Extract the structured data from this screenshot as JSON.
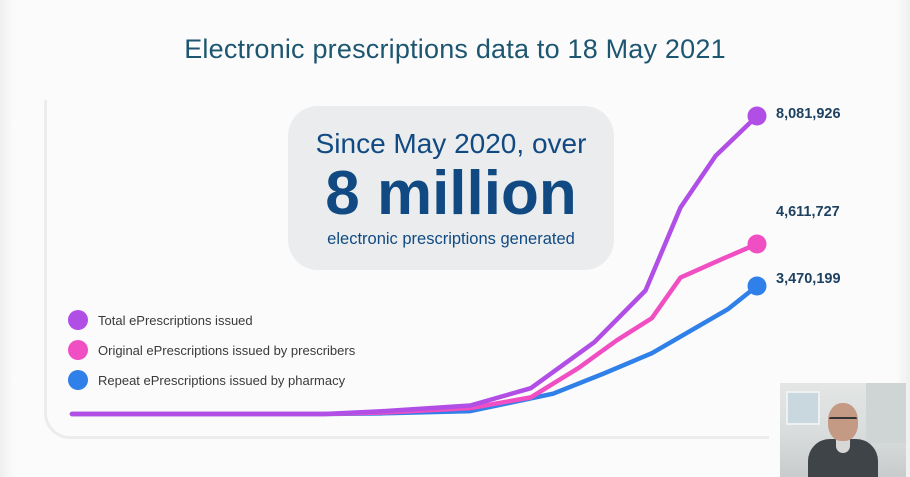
{
  "slide": {
    "title": "Electronic prescriptions data to 18 May 2021",
    "callout": {
      "line1": "Since May 2020, over",
      "big": "8 million",
      "line3": "electronic prescriptions generated"
    }
  },
  "colors": {
    "title": "#1d5670",
    "callout_text": "#114a82",
    "total": "#b04ee6",
    "original": "#f04fc4",
    "repeat": "#2f80e8"
  },
  "chart_data": {
    "type": "line",
    "x": [
      0,
      1,
      2,
      3,
      4,
      5,
      6,
      7,
      8,
      9,
      10,
      11,
      12
    ],
    "ylim": [
      0,
      8081926
    ],
    "series": [
      {
        "name": "Total ePrescriptions issued",
        "color": "#b04ee6",
        "values": [
          0,
          0,
          0,
          0,
          80000,
          230000,
          700000,
          1950000,
          3350000,
          5600000,
          7000000,
          8081926
        ],
        "x": [
          0,
          2.0,
          3.05,
          3.95,
          4.9,
          6.25,
          7.2,
          8.2,
          9.0,
          9.55,
          10.1,
          10.75
        ]
      },
      {
        "name": "Original ePrescriptions issued by prescribers",
        "color": "#f04fc4",
        "values": [
          0,
          0,
          0,
          0,
          40000,
          160000,
          450000,
          1250000,
          2000000,
          2600000,
          3700000,
          4200000,
          4611727
        ],
        "x": [
          0,
          2.0,
          3.05,
          3.95,
          4.9,
          6.25,
          7.2,
          7.95,
          8.55,
          9.1,
          9.55,
          10.2,
          10.75
        ]
      },
      {
        "name": "Repeat ePrescriptions issued by pharmacy",
        "color": "#2f80e8",
        "values": [
          0,
          0,
          0,
          0,
          20000,
          80000,
          550000,
          1100000,
          1650000,
          2300000,
          2850000,
          3470199
        ],
        "x": [
          0,
          2.0,
          3.05,
          3.95,
          4.9,
          6.25,
          7.55,
          8.35,
          9.1,
          9.75,
          10.3,
          10.75
        ]
      }
    ],
    "end_labels": [
      "8,081,926",
      "4,611,727",
      "3,470,199"
    ],
    "legend_position": "left",
    "grid": false
  }
}
